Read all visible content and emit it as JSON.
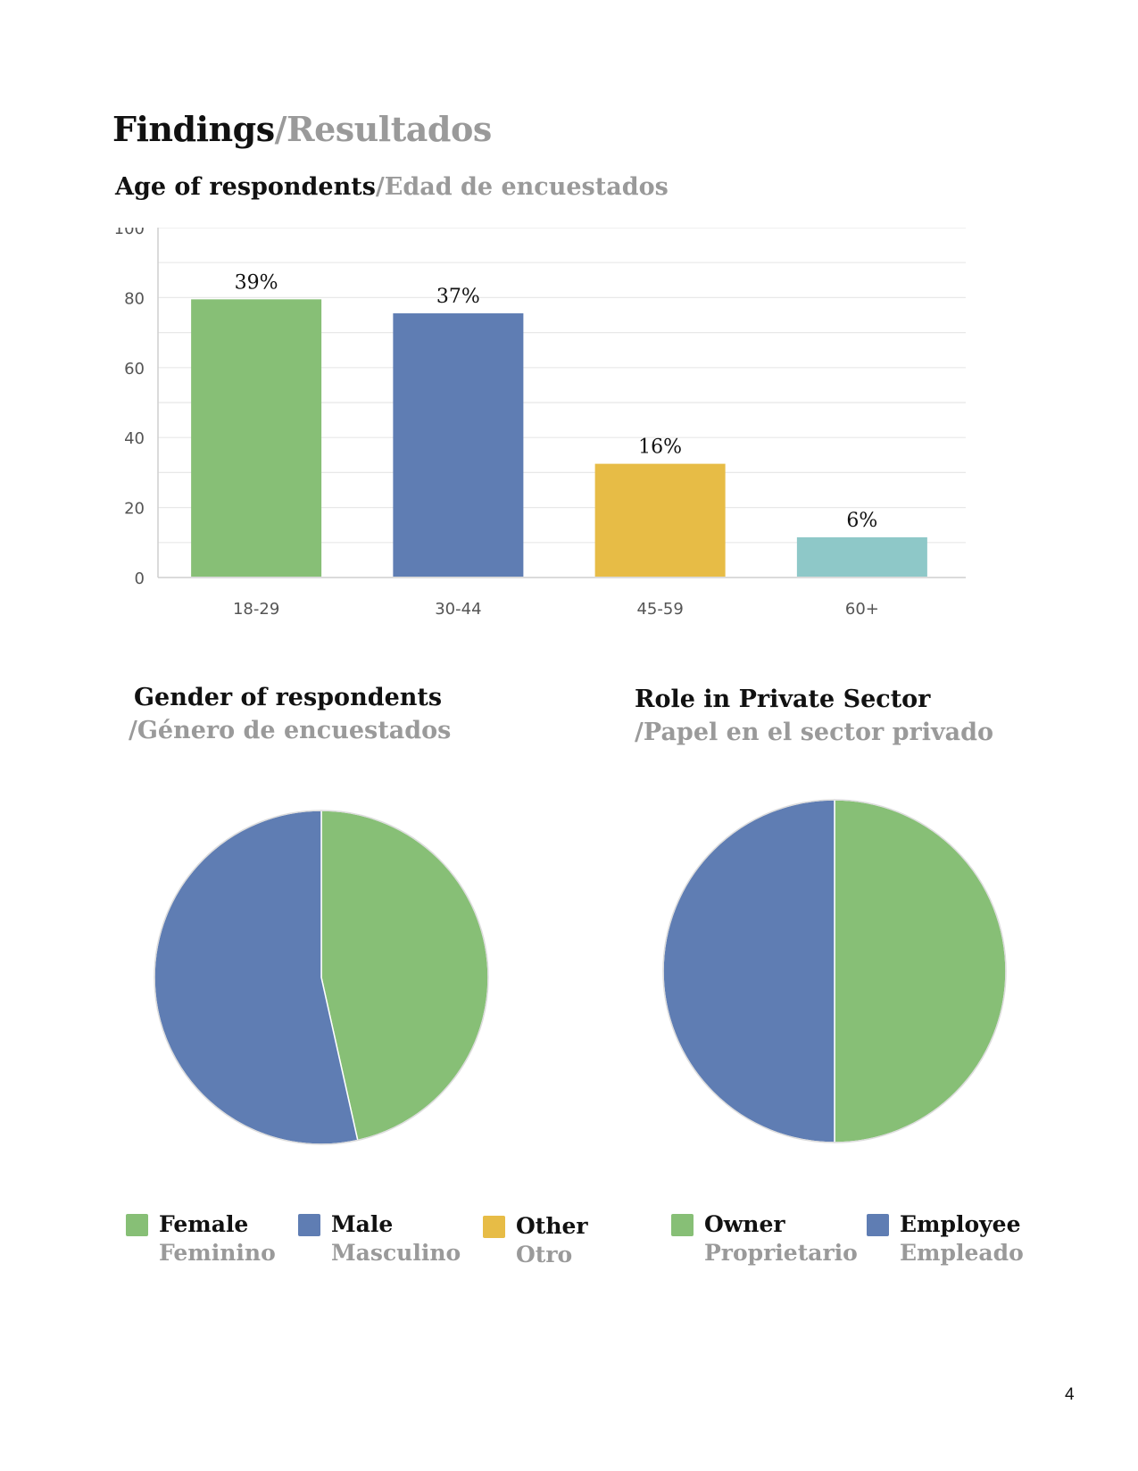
{
  "heading": {
    "en": "Findings",
    "es": "/Resultados"
  },
  "age_section": {
    "en": "Age of respondents",
    "es": "/Edad de encuestados"
  },
  "gender_section": {
    "en": "Gender of respondents",
    "es": "/Género de encuestados"
  },
  "role_section": {
    "en": "Role in Private Sector",
    "es": "/Papel en el sector privado"
  },
  "legend_gender": [
    {
      "en": "Female",
      "es": "Feminino",
      "color": "#87bf76"
    },
    {
      "en": "Male",
      "es": "Masculino",
      "color": "#5f7db3"
    },
    {
      "en": "Other",
      "es": "Otro",
      "color": "#e7bc46"
    }
  ],
  "legend_role": [
    {
      "en": "Owner",
      "es": "Proprietario",
      "color": "#87bf76"
    },
    {
      "en": "Employee",
      "es": "Empleado",
      "color": "#5f7db3"
    }
  ],
  "page_number": "4",
  "chart_data": [
    {
      "type": "bar",
      "categories": [
        "18-29",
        "30-44",
        "45-59",
        "60+"
      ],
      "values": [
        79.5,
        75.5,
        32.5,
        11.5
      ],
      "data_labels": [
        "39%",
        "37%",
        "16%",
        "6%"
      ],
      "colors": [
        "#87bf76",
        "#5f7db3",
        "#e7bc46",
        "#8ec8c8"
      ],
      "ylim": [
        0,
        100
      ],
      "yticks": [
        0,
        20,
        40,
        60,
        80,
        100
      ],
      "grid": true
    },
    {
      "type": "pie",
      "labels": [
        "Female",
        "Male",
        "Other"
      ],
      "values": [
        46.5,
        53.5,
        0
      ],
      "colors": [
        "#87bf76",
        "#5f7db3",
        "#e7bc46"
      ]
    },
    {
      "type": "pie",
      "labels": [
        "Owner",
        "Employee"
      ],
      "values": [
        50,
        50
      ],
      "colors": [
        "#87bf76",
        "#5f7db3"
      ]
    }
  ]
}
